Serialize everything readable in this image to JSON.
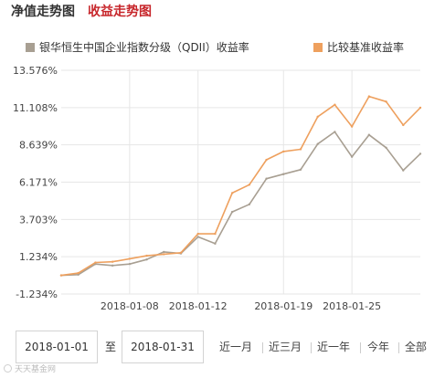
{
  "tabs": [
    {
      "label": "净值走势图",
      "active": false
    },
    {
      "label": "收益走势图",
      "active": true
    }
  ],
  "legend": [
    {
      "label": "银华恒生中国企业指数分级（QDII）收益率",
      "color": "#a89f92"
    },
    {
      "label": "比较基准收益率",
      "color": "#eea05e"
    }
  ],
  "chart_data": {
    "type": "line",
    "x_tick_labels": [
      "2018-01-08",
      "2018-01-12",
      "2018-01-19",
      "2018-01-25"
    ],
    "y_tick_labels": [
      "13.576%",
      "11.108%",
      "8.639%",
      "6.171%",
      "3.703%",
      "1.234%",
      "-1.234%"
    ],
    "ylim": [
      -1.234,
      13.576
    ],
    "x_categories": [
      "2018-01-02",
      "2018-01-03",
      "2018-01-04",
      "2018-01-05",
      "2018-01-08",
      "2018-01-09",
      "2018-01-10",
      "2018-01-11",
      "2018-01-12",
      "2018-01-15",
      "2018-01-16",
      "2018-01-17",
      "2018-01-18",
      "2018-01-19",
      "2018-01-22",
      "2018-01-23",
      "2018-01-24",
      "2018-01-25",
      "2018-01-26",
      "2018-01-29",
      "2018-01-30",
      "2018-01-31"
    ],
    "grid": true,
    "series": [
      {
        "name": "银华恒生中国企业指数分级（QDII）收益率",
        "color": "#a89f92",
        "values": [
          0.0,
          0.05,
          0.75,
          0.65,
          0.75,
          1.05,
          1.55,
          1.45,
          2.55,
          2.1,
          4.2,
          4.7,
          6.4,
          6.7,
          7.0,
          8.7,
          9.5,
          7.85,
          9.3,
          8.45,
          6.95,
          8.05
        ]
      },
      {
        "name": "比较基准收益率",
        "color": "#eea05e",
        "values": [
          0.0,
          0.15,
          0.85,
          0.9,
          1.1,
          1.3,
          1.4,
          1.5,
          2.75,
          2.75,
          5.45,
          6.0,
          7.65,
          8.2,
          8.35,
          10.5,
          11.3,
          9.85,
          11.85,
          11.5,
          9.95,
          11.1
        ]
      }
    ]
  },
  "controls": {
    "start_date": "2018-01-01",
    "to_label": "至",
    "end_date": "2018-01-31",
    "ranges": [
      "近一月",
      "近三月",
      "近一年",
      "今年",
      "全部"
    ]
  },
  "watermark": "天天基金网"
}
